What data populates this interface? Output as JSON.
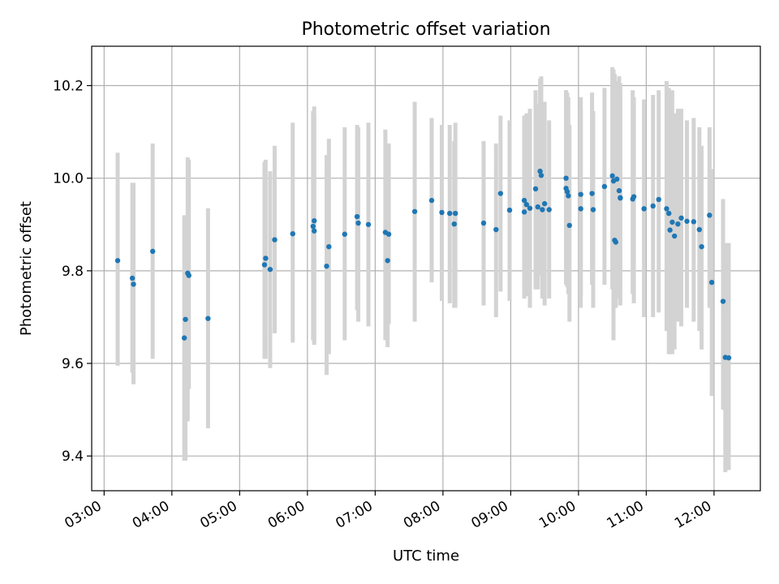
{
  "chart_data": {
    "type": "scatter",
    "title": "Photometric offset variation",
    "xlabel": "UTC time",
    "ylabel": "Photometric offset",
    "xlim": [
      "02:49",
      "12:41"
    ],
    "ylim": [
      9.325,
      10.285
    ],
    "x_ticks": [
      "03:00",
      "04:00",
      "05:00",
      "06:00",
      "07:00",
      "08:00",
      "09:00",
      "10:00",
      "11:00",
      "12:00"
    ],
    "y_ticks": [
      9.4,
      9.6,
      9.8,
      10.0,
      10.2
    ],
    "grid": true,
    "legend": "none",
    "colors": {
      "points": "#1f77b4",
      "error_bars": "#d3d3d3"
    },
    "series": [
      {
        "x": [
          "03:12",
          "03:25",
          "03:26",
          "03:43",
          "04:11",
          "04:12",
          "04:14",
          "04:15",
          "04:32",
          "05:22",
          "05:23",
          "05:27",
          "05:31",
          "05:47",
          "06:05",
          "06:06",
          "06:06",
          "06:17",
          "06:19",
          "06:33",
          "06:44",
          "06:45",
          "06:54",
          "07:09",
          "07:11",
          "07:12",
          "07:35",
          "07:50",
          "07:59",
          "08:06",
          "08:10",
          "08:11",
          "08:36",
          "08:47",
          "08:51",
          "08:59",
          "09:12",
          "09:12",
          "09:14",
          "09:17",
          "09:22",
          "09:24",
          "09:26",
          "09:27",
          "09:28",
          "09:30",
          "09:34",
          "09:49",
          "09:49",
          "09:50",
          "09:51",
          "09:52",
          "10:02",
          "10:02",
          "10:12",
          "10:13",
          "10:23",
          "10:30",
          "10:31",
          "10:32",
          "10:33",
          "10:34",
          "10:36",
          "10:37",
          "10:37",
          "10:48",
          "10:49",
          "10:58",
          "11:06",
          "11:11",
          "11:18",
          "11:20",
          "11:21",
          "11:23",
          "11:25",
          "11:28",
          "11:31",
          "11:36",
          "11:42",
          "11:47",
          "11:49",
          "11:56",
          "11:58",
          "12:08",
          "12:10",
          "12:13"
        ],
        "y": [
          9.822,
          9.784,
          9.771,
          9.842,
          9.655,
          9.695,
          9.795,
          9.79,
          9.697,
          9.813,
          9.827,
          9.803,
          9.867,
          9.88,
          9.896,
          9.908,
          9.886,
          9.81,
          9.852,
          9.879,
          9.917,
          9.903,
          9.9,
          9.883,
          9.822,
          9.879,
          9.928,
          9.952,
          9.926,
          9.924,
          9.901,
          9.924,
          9.903,
          9.889,
          9.967,
          9.931,
          9.952,
          9.927,
          9.943,
          9.935,
          9.977,
          9.938,
          10.015,
          10.006,
          9.932,
          9.945,
          9.932,
          10.0,
          9.978,
          9.971,
          9.962,
          9.898,
          9.965,
          9.934,
          9.967,
          9.932,
          9.982,
          10.005,
          9.994,
          9.866,
          9.862,
          9.998,
          9.973,
          9.957,
          9.958,
          9.955,
          9.96,
          9.934,
          9.94,
          9.954,
          9.934,
          9.924,
          9.888,
          9.905,
          9.875,
          9.901,
          9.914,
          9.907,
          9.906,
          9.889,
          9.852,
          9.92,
          9.775,
          9.734,
          9.613,
          9.612
        ],
        "yerr_low": [
          9.595,
          9.58,
          9.555,
          9.61,
          9.39,
          9.39,
          9.475,
          9.545,
          9.46,
          9.61,
          9.61,
          9.59,
          9.665,
          9.645,
          9.65,
          9.645,
          9.64,
          9.575,
          9.62,
          9.65,
          9.715,
          9.69,
          9.68,
          9.65,
          9.635,
          9.685,
          9.69,
          9.775,
          9.735,
          9.73,
          9.72,
          9.72,
          9.725,
          9.7,
          9.755,
          9.735,
          9.74,
          9.74,
          9.745,
          9.72,
          9.76,
          9.76,
          9.79,
          9.8,
          9.74,
          9.725,
          9.74,
          9.79,
          9.77,
          9.765,
          9.75,
          9.69,
          9.745,
          9.72,
          9.77,
          9.72,
          9.77,
          9.76,
          9.65,
          9.75,
          9.72,
          9.78,
          9.74,
          9.725,
          9.76,
          9.75,
          9.73,
          9.7,
          9.7,
          9.71,
          9.67,
          9.62,
          9.62,
          9.62,
          9.63,
          9.69,
          9.68,
          9.72,
          9.69,
          9.67,
          9.63,
          9.72,
          9.53,
          9.5,
          9.365,
          9.37
        ],
        "yerr_high": [
          10.055,
          9.99,
          9.99,
          10.075,
          9.92,
          9.92,
          10.045,
          10.04,
          9.935,
          10.035,
          10.04,
          10.015,
          10.07,
          10.12,
          10.145,
          10.155,
          10.135,
          10.05,
          10.085,
          10.11,
          10.115,
          10.11,
          10.12,
          10.105,
          10.01,
          10.075,
          10.165,
          10.13,
          10.115,
          10.115,
          10.08,
          10.12,
          10.08,
          10.075,
          10.135,
          10.125,
          10.135,
          10.135,
          10.14,
          10.15,
          10.19,
          10.16,
          10.215,
          10.22,
          10.125,
          10.165,
          10.125,
          10.19,
          10.19,
          10.185,
          10.175,
          10.115,
          10.175,
          10.15,
          10.185,
          10.145,
          10.195,
          10.24,
          10.235,
          10.225,
          10.18,
          10.21,
          10.22,
          10.205,
          10.185,
          10.19,
          10.175,
          10.17,
          10.18,
          10.19,
          10.21,
          10.195,
          10.17,
          10.19,
          10.14,
          10.15,
          10.15,
          10.125,
          10.13,
          10.11,
          10.07,
          10.11,
          10.02,
          9.955,
          9.86,
          9.86
        ]
      }
    ]
  }
}
